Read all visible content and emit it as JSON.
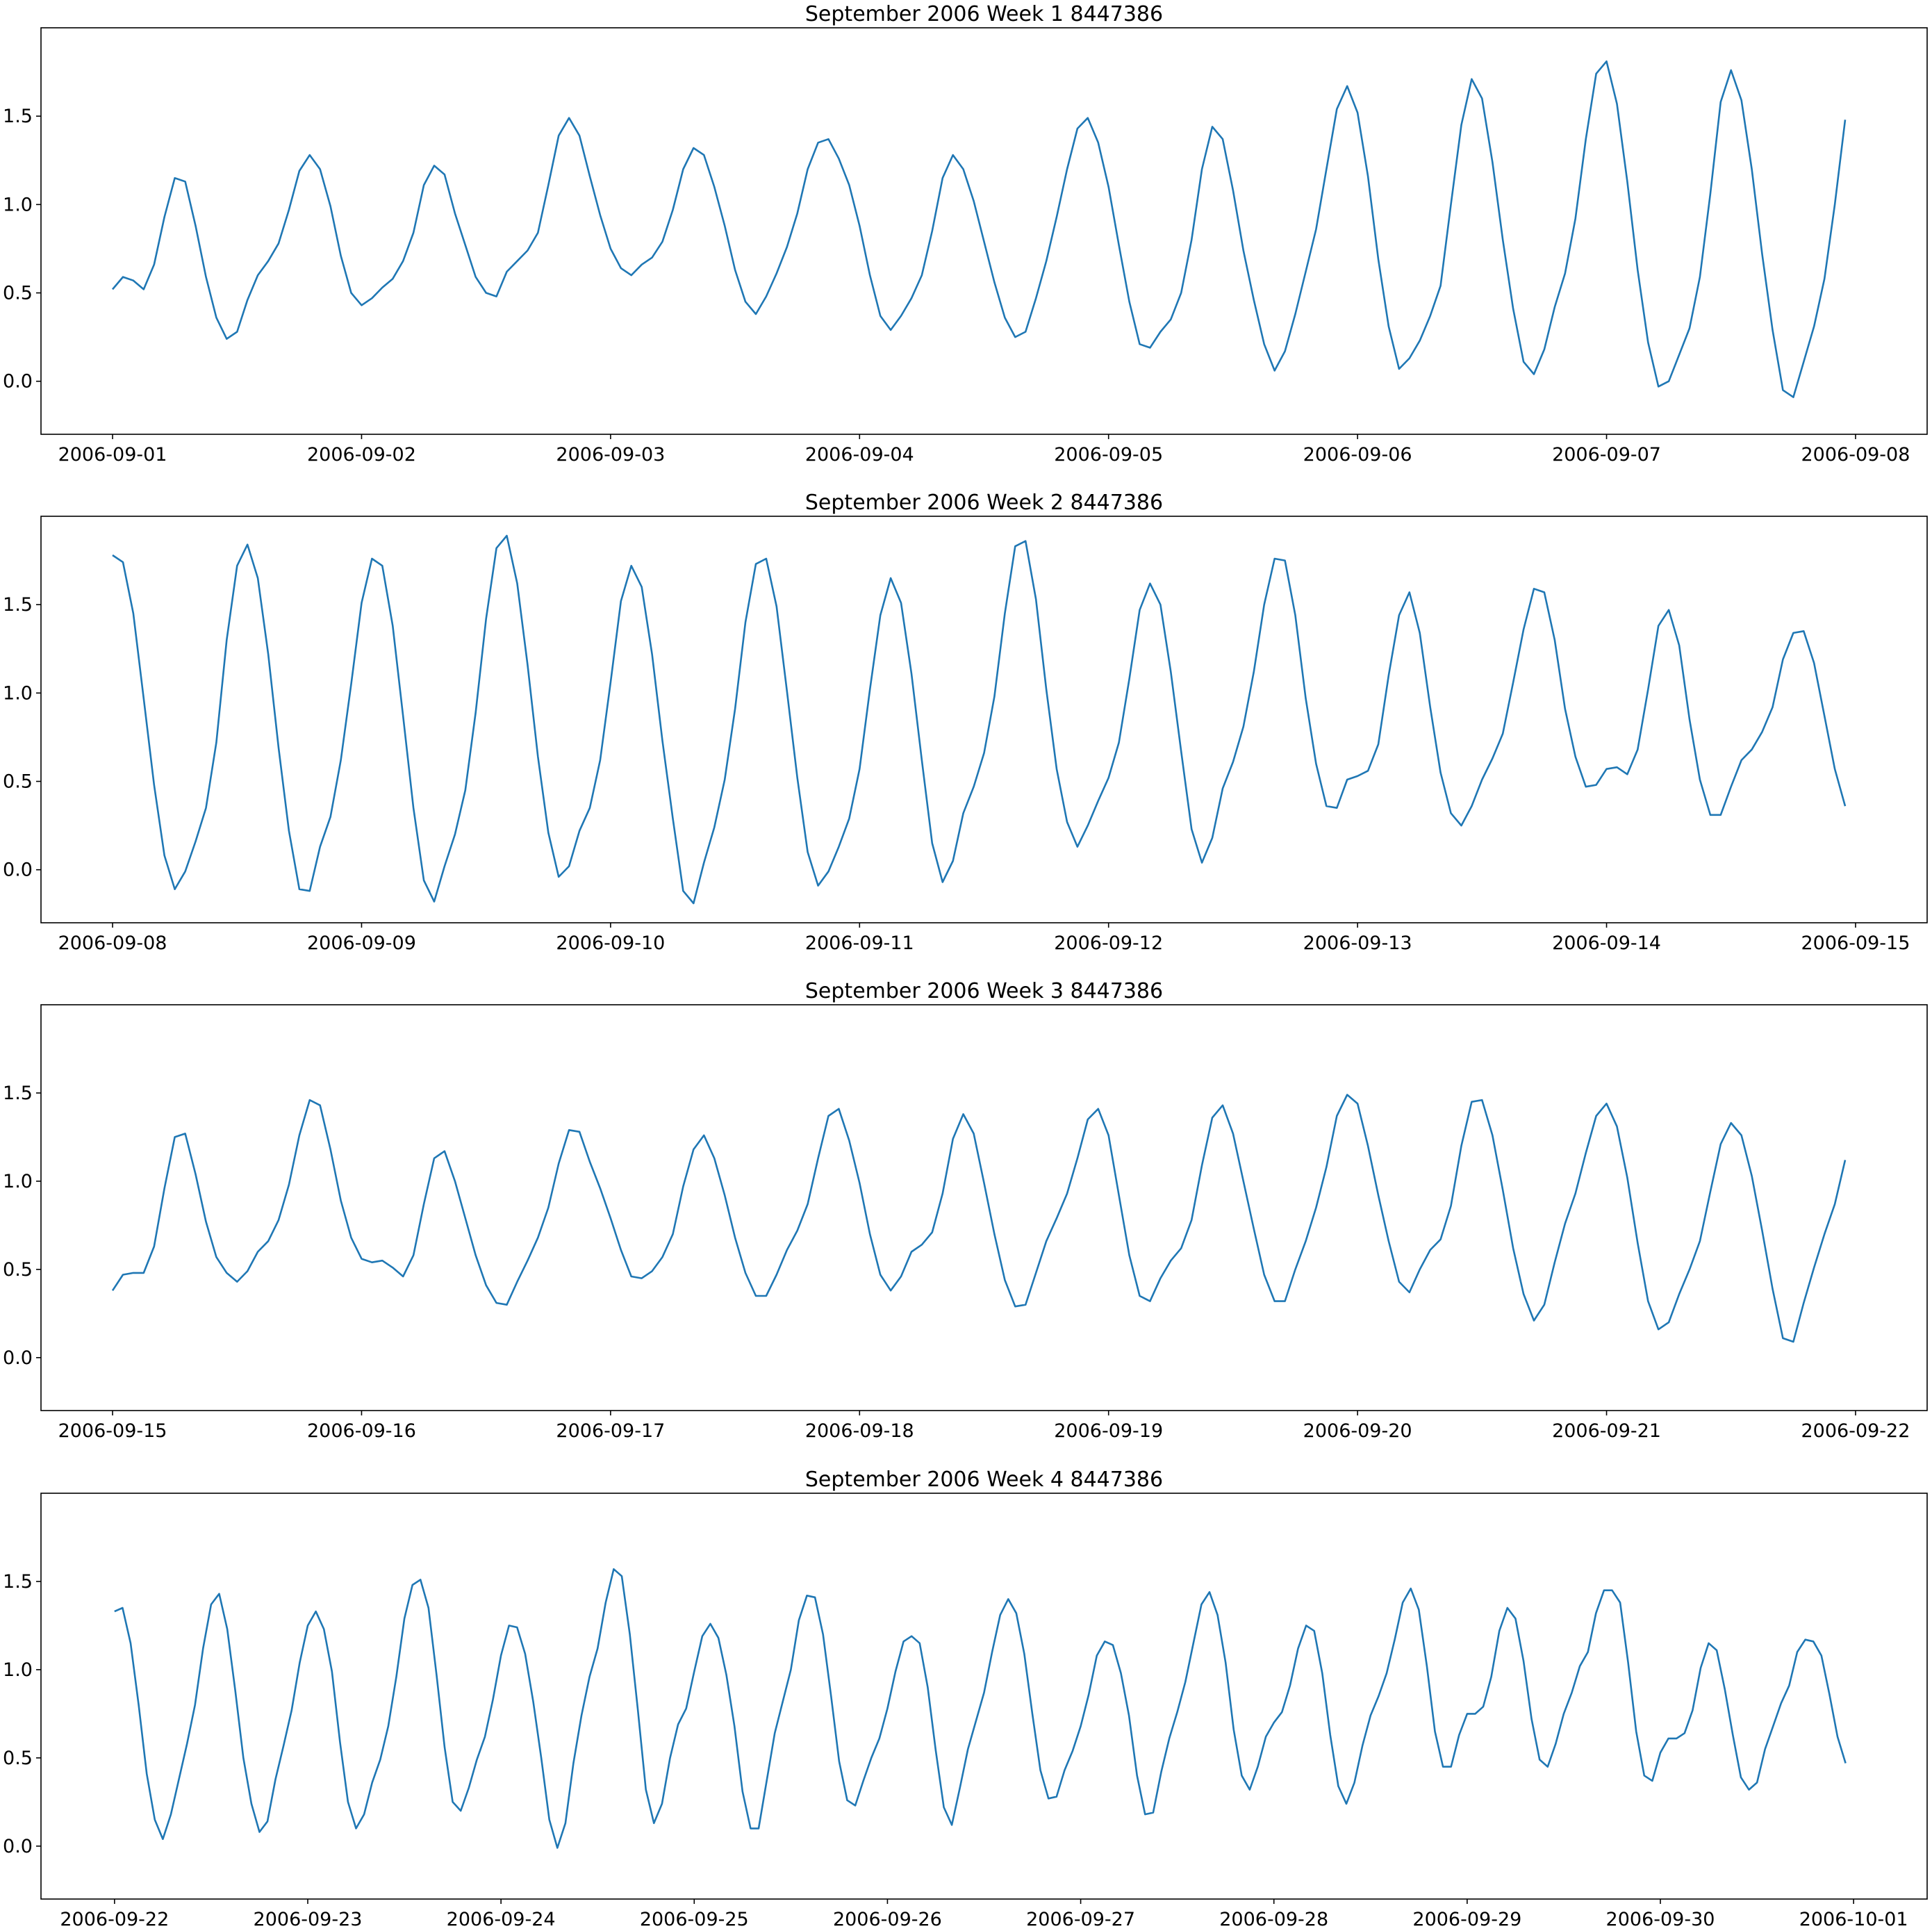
{
  "style": {
    "line_color": "#1f77b4"
  },
  "chart_data": [
    {
      "type": "line",
      "title": "September 2006 Week 1 8447386",
      "xlabel": "",
      "ylabel": "",
      "xlim": [
        "2006-08-31T17:06",
        "2006-09-08T06:54"
      ],
      "ylim": [
        -0.3,
        2.0
      ],
      "grid": false,
      "x_tick_labels": [
        "2006-09-01",
        "2006-09-02",
        "2006-09-03",
        "2006-09-04",
        "2006-09-05",
        "2006-09-06",
        "2006-09-07",
        "2006-09-08"
      ],
      "y_tick_labels": [
        "0.0",
        "0.5",
        "1.0",
        "1.5"
      ],
      "y_ticks": [
        0.0,
        0.5,
        1.0,
        1.5
      ],
      "start": "2006-09-01T00:00",
      "interval_hours": 1,
      "values": [
        0.52,
        0.59,
        0.57,
        0.52,
        0.66,
        0.93,
        1.15,
        1.13,
        0.88,
        0.59,
        0.36,
        0.24,
        0.28,
        0.46,
        0.6,
        0.68,
        0.78,
        0.97,
        1.19,
        1.28,
        1.2,
        0.99,
        0.71,
        0.5,
        0.43,
        0.47,
        0.53,
        0.58,
        0.68,
        0.84,
        1.11,
        1.22,
        1.17,
        0.95,
        0.77,
        0.59,
        0.5,
        0.48,
        0.62,
        0.68,
        0.74,
        0.84,
        1.11,
        1.39,
        1.49,
        1.39,
        1.16,
        0.94,
        0.75,
        0.64,
        0.6,
        0.66,
        0.7,
        0.79,
        0.97,
        1.2,
        1.32,
        1.28,
        1.1,
        0.88,
        0.63,
        0.45,
        0.38,
        0.48,
        0.61,
        0.76,
        0.95,
        1.2,
        1.35,
        1.37,
        1.26,
        1.11,
        0.88,
        0.6,
        0.37,
        0.29,
        0.37,
        0.47,
        0.6,
        0.85,
        1.15,
        1.28,
        1.2,
        1.02,
        0.79,
        0.56,
        0.36,
        0.25,
        0.28,
        0.47,
        0.68,
        0.93,
        1.2,
        1.43,
        1.49,
        1.35,
        1.1,
        0.77,
        0.45,
        0.21,
        0.19,
        0.28,
        0.35,
        0.5,
        0.8,
        1.2,
        1.44,
        1.37,
        1.08,
        0.74,
        0.46,
        0.21,
        0.06,
        0.17,
        0.38,
        0.62,
        0.86,
        1.2,
        1.54,
        1.67,
        1.52,
        1.16,
        0.69,
        0.31,
        0.07,
        0.13,
        0.23,
        0.37,
        0.54,
        1.0,
        1.45,
        1.71,
        1.6,
        1.24,
        0.8,
        0.41,
        0.11,
        0.04,
        0.18,
        0.42,
        0.61,
        0.92,
        1.37,
        1.74,
        1.81,
        1.57,
        1.13,
        0.63,
        0.22,
        -0.03,
        0.0,
        0.15,
        0.3,
        0.59,
        1.06,
        1.58,
        1.76,
        1.59,
        1.2,
        0.72,
        0.29,
        -0.05,
        -0.09,
        0.11,
        0.31,
        0.58,
        1.0,
        1.48
      ]
    },
    {
      "type": "line",
      "title": "September 2006 Week 2 8447386",
      "xlabel": "",
      "ylabel": "",
      "xlim": [
        "2006-09-07T17:06",
        "2006-09-15T06:54"
      ],
      "ylim": [
        -0.3,
        2.0
      ],
      "grid": false,
      "x_tick_labels": [
        "2006-09-08",
        "2006-09-09",
        "2006-09-10",
        "2006-09-11",
        "2006-09-12",
        "2006-09-13",
        "2006-09-14",
        "2006-09-15"
      ],
      "y_tick_labels": [
        "0.0",
        "0.5",
        "1.0",
        "1.5"
      ],
      "y_ticks": [
        0.0,
        0.5,
        1.0,
        1.5
      ],
      "start": "2006-09-08T00:00",
      "interval_hours": 1,
      "values": [
        1.78,
        1.74,
        1.45,
        0.97,
        0.48,
        0.08,
        -0.11,
        -0.01,
        0.16,
        0.35,
        0.72,
        1.3,
        1.72,
        1.84,
        1.65,
        1.22,
        0.69,
        0.22,
        -0.11,
        -0.12,
        0.13,
        0.3,
        0.62,
        1.05,
        1.51,
        1.76,
        1.72,
        1.38,
        0.87,
        0.35,
        -0.06,
        -0.18,
        0.02,
        0.2,
        0.45,
        0.89,
        1.42,
        1.82,
        1.89,
        1.62,
        1.16,
        0.64,
        0.21,
        -0.04,
        0.02,
        0.22,
        0.35,
        0.62,
        1.06,
        1.52,
        1.72,
        1.6,
        1.22,
        0.73,
        0.29,
        -0.12,
        -0.19,
        0.04,
        0.24,
        0.51,
        0.91,
        1.4,
        1.73,
        1.76,
        1.49,
        1.01,
        0.52,
        0.1,
        -0.09,
        -0.01,
        0.13,
        0.29,
        0.57,
        1.02,
        1.44,
        1.65,
        1.51,
        1.11,
        0.62,
        0.15,
        -0.07,
        0.05,
        0.32,
        0.47,
        0.66,
        0.98,
        1.45,
        1.83,
        1.86,
        1.53,
        1.02,
        0.57,
        0.27,
        0.13,
        0.25,
        0.39,
        0.52,
        0.72,
        1.08,
        1.47,
        1.62,
        1.5,
        1.12,
        0.67,
        0.23,
        0.04,
        0.18,
        0.46,
        0.61,
        0.81,
        1.12,
        1.5,
        1.76,
        1.75,
        1.44,
        0.97,
        0.6,
        0.36,
        0.35,
        0.51,
        0.53,
        0.56,
        0.71,
        1.1,
        1.44,
        1.57,
        1.34,
        0.92,
        0.55,
        0.32,
        0.25,
        0.36,
        0.51,
        0.63,
        0.77,
        1.06,
        1.36,
        1.59,
        1.57,
        1.3,
        0.91,
        0.64,
        0.47,
        0.48,
        0.57,
        0.58,
        0.54,
        0.68,
        1.02,
        1.38,
        1.47,
        1.27,
        0.85,
        0.51,
        0.31,
        0.31,
        0.47,
        0.62,
        0.68,
        0.78,
        0.92,
        1.19,
        1.34,
        1.35,
        1.17,
        0.87,
        0.57,
        0.36
      ]
    },
    {
      "type": "line",
      "title": "September 2006 Week 3 8447386",
      "xlabel": "",
      "ylabel": "",
      "xlim": [
        "2006-09-14T17:06",
        "2006-09-22T06:54"
      ],
      "ylim": [
        -0.3,
        2.0
      ],
      "grid": false,
      "x_tick_labels": [
        "2006-09-15",
        "2006-09-16",
        "2006-09-17",
        "2006-09-18",
        "2006-09-19",
        "2006-09-20",
        "2006-09-21",
        "2006-09-22"
      ],
      "y_tick_labels": [
        "0.0",
        "0.5",
        "1.0",
        "1.5"
      ],
      "y_ticks": [
        0.0,
        0.5,
        1.0,
        1.5
      ],
      "start": "2006-09-15T00:00",
      "interval_hours": 1,
      "values": [
        0.38,
        0.47,
        0.48,
        0.48,
        0.63,
        0.96,
        1.25,
        1.27,
        1.04,
        0.77,
        0.57,
        0.48,
        0.43,
        0.49,
        0.6,
        0.66,
        0.78,
        0.98,
        1.26,
        1.46,
        1.43,
        1.18,
        0.89,
        0.68,
        0.56,
        0.54,
        0.55,
        0.51,
        0.46,
        0.58,
        0.87,
        1.13,
        1.17,
        1.0,
        0.79,
        0.58,
        0.41,
        0.31,
        0.3,
        0.43,
        0.55,
        0.68,
        0.85,
        1.1,
        1.29,
        1.28,
        1.11,
        0.96,
        0.79,
        0.61,
        0.46,
        0.45,
        0.49,
        0.57,
        0.7,
        0.97,
        1.18,
        1.26,
        1.13,
        0.92,
        0.68,
        0.48,
        0.35,
        0.35,
        0.47,
        0.61,
        0.72,
        0.87,
        1.13,
        1.37,
        1.41,
        1.23,
        0.99,
        0.7,
        0.47,
        0.38,
        0.46,
        0.6,
        0.64,
        0.71,
        0.93,
        1.24,
        1.38,
        1.27,
        0.99,
        0.7,
        0.44,
        0.29,
        0.3,
        0.48,
        0.66,
        0.79,
        0.93,
        1.13,
        1.35,
        1.41,
        1.26,
        0.92,
        0.58,
        0.35,
        0.32,
        0.45,
        0.55,
        0.62,
        0.78,
        1.09,
        1.36,
        1.43,
        1.27,
        1.0,
        0.73,
        0.47,
        0.32,
        0.32,
        0.5,
        0.66,
        0.85,
        1.08,
        1.37,
        1.49,
        1.44,
        1.2,
        0.92,
        0.66,
        0.43,
        0.37,
        0.5,
        0.61,
        0.67,
        0.86,
        1.2,
        1.45,
        1.46,
        1.26,
        0.95,
        0.62,
        0.36,
        0.21,
        0.3,
        0.54,
        0.76,
        0.93,
        1.16,
        1.37,
        1.44,
        1.31,
        1.02,
        0.65,
        0.32,
        0.16,
        0.2,
        0.36,
        0.5,
        0.66,
        0.94,
        1.21,
        1.33,
        1.26,
        1.03,
        0.72,
        0.39,
        0.11,
        0.09,
        0.31,
        0.51,
        0.7,
        0.87,
        1.12
      ]
    },
    {
      "type": "line",
      "title": "September 2006 Week 4 8447386",
      "xlabel": "",
      "ylabel": "",
      "xlim": [
        "2006-09-21T14:52",
        "2006-10-01T09:08"
      ],
      "ylim": [
        -0.3,
        2.0
      ],
      "grid": false,
      "x_tick_labels": [
        "2006-09-22",
        "2006-09-23",
        "2006-09-24",
        "2006-09-25",
        "2006-09-26",
        "2006-09-27",
        "2006-09-28",
        "2006-09-29",
        "2006-09-30",
        "2006-10-01"
      ],
      "y_tick_labels": [
        "0.0",
        "0.5",
        "1.0",
        "1.5"
      ],
      "y_ticks": [
        0.0,
        0.5,
        1.0,
        1.5
      ],
      "start": "2006-09-22T00:00",
      "interval_hours": 1,
      "values": [
        1.33,
        1.35,
        1.15,
        0.8,
        0.41,
        0.15,
        0.04,
        0.18,
        0.38,
        0.58,
        0.8,
        1.12,
        1.37,
        1.43,
        1.23,
        0.88,
        0.5,
        0.24,
        0.08,
        0.14,
        0.38,
        0.57,
        0.77,
        1.04,
        1.25,
        1.33,
        1.23,
        0.99,
        0.59,
        0.25,
        0.1,
        0.18,
        0.36,
        0.49,
        0.68,
        0.96,
        1.29,
        1.48,
        1.51,
        1.35,
        0.97,
        0.56,
        0.25,
        0.2,
        0.33,
        0.49,
        0.62,
        0.83,
        1.08,
        1.25,
        1.24,
        1.09,
        0.82,
        0.5,
        0.15,
        -0.01,
        0.13,
        0.47,
        0.74,
        0.96,
        1.12,
        1.38,
        1.57,
        1.53,
        1.2,
        0.77,
        0.32,
        0.13,
        0.24,
        0.5,
        0.69,
        0.78,
        0.99,
        1.19,
        1.26,
        1.18,
        0.97,
        0.68,
        0.31,
        0.1,
        0.1,
        0.37,
        0.64,
        0.82,
        1.0,
        1.28,
        1.42,
        1.41,
        1.2,
        0.85,
        0.48,
        0.26,
        0.23,
        0.37,
        0.5,
        0.61,
        0.78,
        0.99,
        1.16,
        1.19,
        1.15,
        0.9,
        0.54,
        0.22,
        0.12,
        0.33,
        0.55,
        0.71,
        0.87,
        1.1,
        1.31,
        1.4,
        1.32,
        1.09,
        0.75,
        0.43,
        0.27,
        0.28,
        0.43,
        0.54,
        0.68,
        0.86,
        1.08,
        1.16,
        1.14,
        0.98,
        0.74,
        0.4,
        0.18,
        0.19,
        0.42,
        0.61,
        0.76,
        0.93,
        1.15,
        1.37,
        1.44,
        1.31,
        1.04,
        0.66,
        0.4,
        0.32,
        0.45,
        0.62,
        0.7,
        0.76,
        0.91,
        1.12,
        1.25,
        1.22,
        0.98,
        0.63,
        0.34,
        0.24,
        0.36,
        0.57,
        0.74,
        0.85,
        0.98,
        1.17,
        1.38,
        1.46,
        1.34,
        1.02,
        0.65,
        0.45,
        0.45,
        0.63,
        0.75,
        0.75,
        0.79,
        0.96,
        1.22,
        1.35,
        1.29,
        1.05,
        0.72,
        0.49,
        0.45,
        0.58,
        0.75,
        0.87,
        1.02,
        1.1,
        1.32,
        1.45,
        1.45,
        1.38,
        1.04,
        0.65,
        0.4,
        0.37,
        0.53,
        0.61,
        0.61,
        0.64,
        0.77,
        1.01,
        1.15,
        1.11,
        0.89,
        0.63,
        0.39,
        0.32,
        0.36,
        0.55,
        0.68,
        0.81,
        0.91,
        1.1,
        1.17,
        1.16,
        1.08,
        0.86,
        0.62,
        0.47
      ]
    }
  ]
}
